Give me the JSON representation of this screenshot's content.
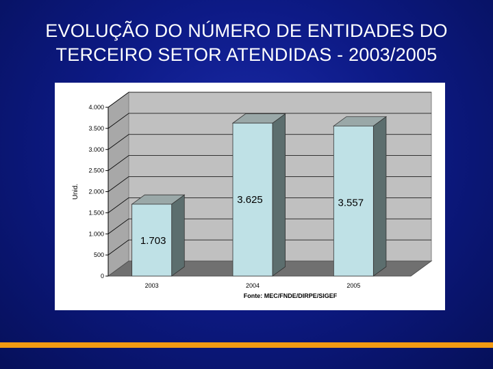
{
  "slide": {
    "title_line1": "EVOLUÇÃO DO NÚMERO DE ENTIDADES DO",
    "title_line2": "TERCEIRO SETOR ATENDIDAS - 2003/2005",
    "accent_color": "#f29a12",
    "background_color": "#0d1a86"
  },
  "chart_data": {
    "type": "bar",
    "style": "3d",
    "categories": [
      "2003",
      "2004",
      "2005"
    ],
    "values": [
      1703,
      3625,
      3557
    ],
    "value_labels": [
      "1.703",
      "3.625",
      "3.557"
    ],
    "ylabel": "Unid.",
    "xlabel": "Fonte: MEC/FNDE/DIRPE/SIGEF",
    "ylim": [
      0,
      4000
    ],
    "yticks": [
      0,
      500,
      1000,
      1500,
      2000,
      2500,
      3000,
      3500,
      4000
    ],
    "ytick_labels": [
      "0",
      "500",
      "1.000",
      "1.500",
      "2.000",
      "2.500",
      "3.000",
      "3.500",
      "4.000"
    ],
    "grid": true,
    "legend": "none",
    "colors": {
      "bar_front": "#bfe1e6",
      "bar_side": "#5c6e6e",
      "bar_top": "#9aa8a8",
      "wall": "#c0c0c0",
      "floor": "#707070"
    }
  }
}
